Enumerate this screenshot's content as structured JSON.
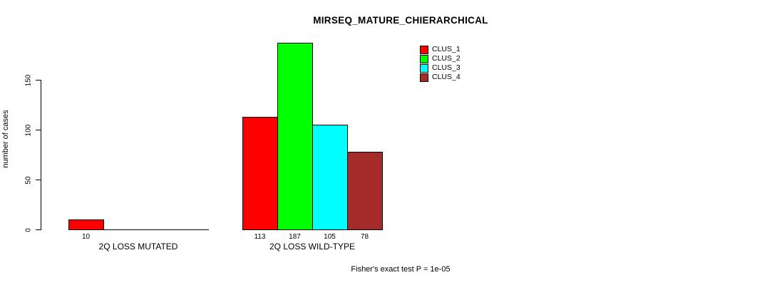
{
  "title": "MIRSEQ_MATURE_CHIERARCHICAL",
  "footer": "Fisher's exact test P = 1e-05",
  "y_axis": {
    "label": "number of cases",
    "ticks": [
      0,
      50,
      100,
      150
    ]
  },
  "legend": {
    "position": "top-right",
    "items": [
      {
        "label": "CLUS_1",
        "color": "#FF0000"
      },
      {
        "label": "CLUS_2",
        "color": "#00FF00"
      },
      {
        "label": "CLUS_3",
        "color": "#00FFFF"
      },
      {
        "label": "CLUS_4",
        "color": "#A52A2A"
      }
    ]
  },
  "chart_data": {
    "type": "bar",
    "title": "MIRSEQ_MATURE_CHIERARCHICAL",
    "xlabel": "",
    "ylabel": "number of cases",
    "categories": [
      "2Q LOSS MUTATED",
      "2Q LOSS WILD-TYPE"
    ],
    "series": [
      {
        "name": "CLUS_1",
        "color": "#FF0000",
        "values": [
          10,
          113
        ]
      },
      {
        "name": "CLUS_2",
        "color": "#00FF00",
        "values": [
          0,
          187
        ]
      },
      {
        "name": "CLUS_3",
        "color": "#00FFFF",
        "values": [
          0,
          105
        ]
      },
      {
        "name": "CLUS_4",
        "color": "#A52A2A",
        "values": [
          0,
          78
        ]
      }
    ],
    "value_labels": {
      "2Q LOSS MUTATED": [
        10
      ],
      "2Q LOSS WILD-TYPE": [
        113,
        187,
        105,
        78
      ]
    },
    "yticks": [
      0,
      50,
      100,
      150
    ],
    "ylim": [
      0,
      190
    ],
    "grid": false,
    "legend_position": "top-right",
    "annotation": "Fisher's exact test P = 1e-05"
  }
}
